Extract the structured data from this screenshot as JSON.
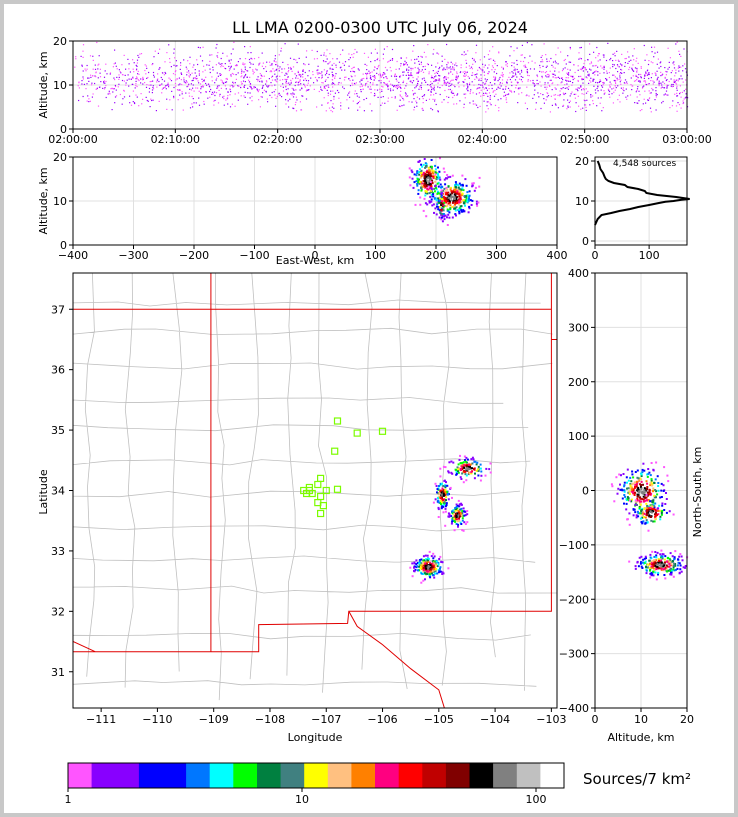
{
  "chart_data": [
    {
      "id": "time_altitude",
      "type": "scatter",
      "title": "LL LMA 0200-0300 UTC July 06, 2024",
      "ylabel": "Altitude, km",
      "xlim": [
        "02:00:00",
        "03:00:00"
      ],
      "ylim": [
        0,
        20
      ],
      "xticks": [
        "02:00:00",
        "02:10:00",
        "02:20:00",
        "02:30:00",
        "02:40:00",
        "02:50:00",
        "03:00:00"
      ],
      "yticks": [
        0,
        10,
        20
      ],
      "color_by": "time",
      "grid": true
    },
    {
      "id": "eastwest_altitude",
      "type": "scatter",
      "xlabel": "East-West, km",
      "ylabel": "Altitude, km",
      "xlim": [
        -400,
        400
      ],
      "ylim": [
        0,
        20
      ],
      "xticks": [
        -400,
        -300,
        -200,
        -100,
        0,
        100,
        200,
        300,
        400
      ],
      "yticks": [
        0,
        10,
        20
      ],
      "grid": true,
      "clusters": [
        {
          "x": 185,
          "y": 15,
          "sx": 12,
          "sy": 2.5,
          "n": 220
        },
        {
          "x": 225,
          "y": 11,
          "sx": 18,
          "sy": 2.0,
          "n": 320
        },
        {
          "x": 208,
          "y": 9,
          "sx": 3,
          "sy": 1.5,
          "n": 40
        }
      ]
    },
    {
      "id": "altitude_histogram",
      "type": "line",
      "annotation": "4,548 sources",
      "xlim": [
        0,
        170
      ],
      "ylim": [
        -1,
        21
      ],
      "xticks": [
        0,
        100
      ],
      "yticks": [
        0,
        10,
        20
      ],
      "points": [
        [
          0,
          4
        ],
        [
          5,
          5.5
        ],
        [
          12,
          6.5
        ],
        [
          30,
          7
        ],
        [
          45,
          7.5
        ],
        [
          65,
          8
        ],
        [
          80,
          8.5
        ],
        [
          100,
          9
        ],
        [
          118,
          9.5
        ],
        [
          130,
          9.8
        ],
        [
          145,
          10
        ],
        [
          160,
          10.3
        ],
        [
          175,
          10.5
        ],
        [
          150,
          11
        ],
        [
          115,
          11.5
        ],
        [
          95,
          12
        ],
        [
          92,
          12.5
        ],
        [
          80,
          13
        ],
        [
          60,
          13.5
        ],
        [
          55,
          14
        ],
        [
          35,
          14.5
        ],
        [
          25,
          15
        ],
        [
          20,
          15.5
        ],
        [
          18,
          16
        ],
        [
          15,
          17
        ],
        [
          10,
          18
        ],
        [
          8,
          19
        ],
        [
          5,
          20
        ]
      ]
    },
    {
      "id": "plan_view",
      "type": "scatter",
      "xlabel": "Longitude",
      "ylabel": "Latitude",
      "xlim": [
        -111.5,
        -102.9
      ],
      "ylim": [
        30.4,
        37.6
      ],
      "xticks": [
        -111,
        -110,
        -109,
        -108,
        -107,
        -106,
        -105,
        -104,
        -103
      ],
      "yticks": [
        31,
        32,
        33,
        34,
        35,
        36,
        37
      ],
      "stations": [
        [
          -106.8,
          35.15
        ],
        [
          -106.45,
          34.95
        ],
        [
          -106.0,
          34.98
        ],
        [
          -106.85,
          34.65
        ],
        [
          -107.1,
          34.2
        ],
        [
          -107.3,
          34.05
        ],
        [
          -107.15,
          34.1
        ],
        [
          -107.0,
          34.0
        ],
        [
          -107.35,
          33.95
        ],
        [
          -107.25,
          33.95
        ],
        [
          -107.1,
          33.9
        ],
        [
          -107.3,
          34.0
        ],
        [
          -107.4,
          34.0
        ],
        [
          -107.15,
          33.8
        ],
        [
          -107.05,
          33.75
        ],
        [
          -107.1,
          33.62
        ],
        [
          -106.8,
          34.02
        ]
      ],
      "clusters": [
        {
          "lon": -105.2,
          "lat": 32.75,
          "s1": 0.13,
          "s2": 0.09,
          "n": 220
        },
        {
          "lon": -104.95,
          "lat": 33.95,
          "s1": 0.06,
          "s2": 0.12,
          "n": 120
        },
        {
          "lon": -104.68,
          "lat": 33.6,
          "s1": 0.07,
          "s2": 0.09,
          "n": 110
        },
        {
          "lon": -104.5,
          "lat": 34.38,
          "s1": 0.16,
          "s2": 0.08,
          "n": 130
        }
      ]
    },
    {
      "id": "altitude_northsouth",
      "type": "scatter",
      "xlabel": "Altitude, km",
      "ylabel": "North-South, km",
      "xlim": [
        0,
        20
      ],
      "ylim": [
        -400,
        400
      ],
      "xticks": [
        0,
        10,
        20
      ],
      "yticks": [
        -400,
        -300,
        -200,
        -100,
        0,
        100,
        200,
        300,
        400
      ],
      "grid": true,
      "clusters": [
        {
          "x": 10,
          "y": 0,
          "sx": 2.5,
          "sy": 22,
          "n": 260
        },
        {
          "x": 12,
          "y": -40,
          "sx": 1.8,
          "sy": 12,
          "n": 120
        },
        {
          "x": 14,
          "y": -135,
          "sx": 2.5,
          "sy": 10,
          "n": 220
        }
      ]
    }
  ],
  "colorbar": {
    "label": "Sources/7 km²",
    "tick_labels": [
      "1",
      "10",
      "100"
    ],
    "colors": [
      "#ff55ff",
      "#8800ff",
      "#8800ff",
      "#0000ff",
      "#0000ff",
      "#0077ff",
      "#00ffff",
      "#00ff00",
      "#008040",
      "#408080",
      "#ffff00",
      "#ffc080",
      "#ff8000",
      "#ff0080",
      "#ff0000",
      "#c00000",
      "#800000",
      "#000000",
      "#808080",
      "#c0c0c0",
      "#ffffff"
    ]
  }
}
